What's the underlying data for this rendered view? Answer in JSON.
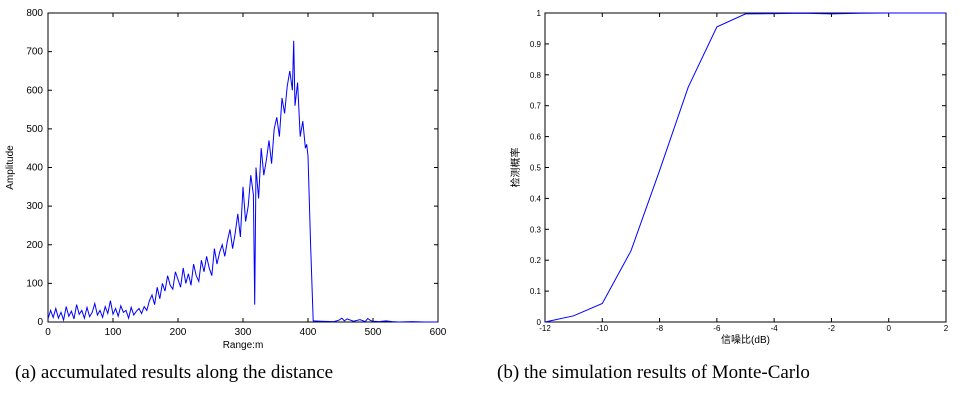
{
  "chart_data": [
    {
      "type": "line",
      "xlabel": "Range:m",
      "ylabel": "Amplitude",
      "xlim": [
        0,
        600
      ],
      "ylim": [
        0,
        800
      ],
      "xticks": [
        0,
        100,
        200,
        300,
        400,
        500,
        600
      ],
      "yticks": [
        0,
        100,
        200,
        300,
        400,
        500,
        600,
        700,
        800
      ],
      "grid": false,
      "line_color": "#0000ff",
      "series": [
        {
          "x": [
            0,
            4,
            8,
            12,
            16,
            20,
            24,
            28,
            32,
            36,
            40,
            44,
            48,
            52,
            56,
            60,
            64,
            68,
            72,
            76,
            80,
            84,
            88,
            92,
            96,
            100,
            104,
            108,
            112,
            116,
            120,
            124,
            128,
            132,
            136,
            140,
            144,
            148,
            152,
            156,
            160,
            164,
            168,
            172,
            176,
            180,
            184,
            188,
            192,
            196,
            200,
            204,
            208,
            212,
            216,
            220,
            224,
            228,
            232,
            236,
            240,
            244,
            248,
            252,
            256,
            260,
            264,
            268,
            272,
            276,
            280,
            284,
            288,
            292,
            296,
            300,
            304,
            308,
            312,
            316,
            318,
            320,
            324,
            328,
            332,
            336,
            340,
            344,
            348,
            352,
            356,
            360,
            364,
            368,
            372,
            376,
            378,
            380,
            384,
            388,
            392,
            396,
            398,
            400,
            404,
            408,
            420,
            440,
            448,
            452,
            456,
            460,
            470,
            480,
            488,
            492,
            496,
            500,
            510,
            520,
            530,
            540,
            560,
            580,
            600
          ],
          "y": [
            8,
            30,
            12,
            35,
            10,
            25,
            5,
            40,
            15,
            28,
            8,
            45,
            20,
            30,
            10,
            38,
            14,
            25,
            48,
            18,
            30,
            12,
            40,
            22,
            55,
            20,
            35,
            15,
            42,
            25,
            30,
            10,
            38,
            18,
            28,
            35,
            22,
            40,
            30,
            55,
            70,
            45,
            90,
            60,
            100,
            80,
            120,
            95,
            85,
            130,
            110,
            90,
            140,
            100,
            125,
            95,
            150,
            120,
            105,
            160,
            130,
            170,
            140,
            120,
            190,
            150,
            180,
            200,
            170,
            210,
            240,
            190,
            230,
            280,
            220,
            350,
            260,
            300,
            380,
            330,
            45,
            400,
            320,
            450,
            380,
            420,
            470,
            410,
            500,
            530,
            480,
            580,
            540,
            610,
            650,
            600,
            728,
            560,
            620,
            480,
            520,
            450,
            460,
            430,
            200,
            3,
            2,
            1,
            5,
            10,
            3,
            8,
            2,
            6,
            1,
            9,
            4,
            2,
            1,
            3,
            1,
            0,
            1,
            0,
            0
          ]
        }
      ]
    },
    {
      "type": "line",
      "xlabel": "信噪比(dB)",
      "ylabel": "检测概率",
      "xlim": [
        -12,
        2
      ],
      "ylim": [
        0,
        1
      ],
      "xticks": [
        -12,
        -10,
        -8,
        -6,
        -4,
        -2,
        0,
        2
      ],
      "yticks": [
        0,
        0.1,
        0.2,
        0.3,
        0.4,
        0.5,
        0.6,
        0.7,
        0.8,
        0.9,
        1
      ],
      "grid": false,
      "line_color": "#0000ff",
      "series": [
        {
          "x": [
            -12,
            -11,
            -10,
            -9,
            -8,
            -7,
            -6,
            -5,
            -4,
            -3,
            -2,
            -1,
            0,
            1,
            2
          ],
          "y": [
            0.0,
            0.02,
            0.06,
            0.23,
            0.49,
            0.76,
            0.955,
            0.997,
            0.998,
            0.999,
            0.997,
            0.999,
            1.0,
            1.0,
            1.0
          ]
        }
      ]
    }
  ],
  "captions": {
    "left": "(a) accumulated results along the distance",
    "right": "(b) the simulation results of Monte-Carlo"
  }
}
